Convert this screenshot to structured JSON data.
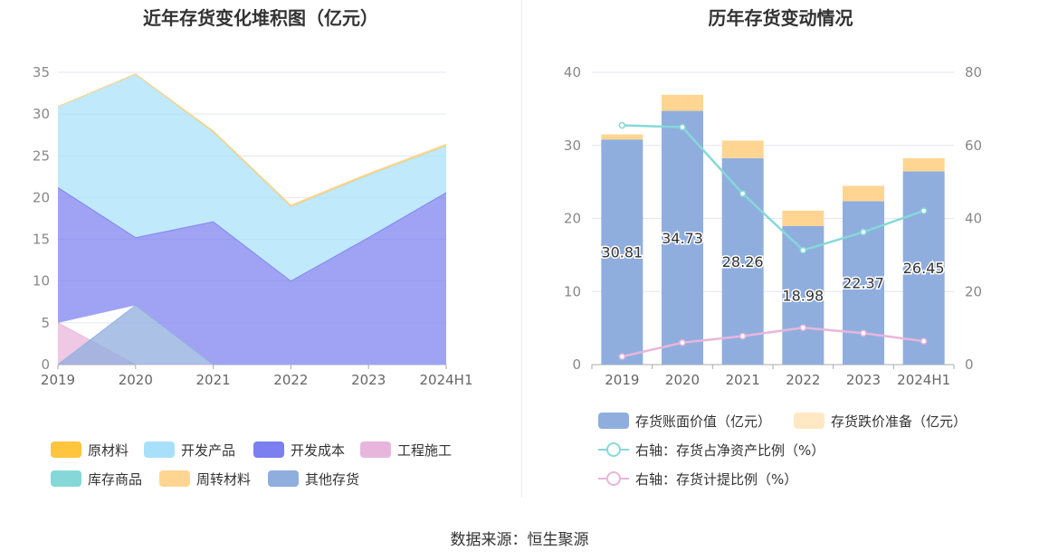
{
  "source": "数据来源：恒生聚源",
  "chart_data": [
    {
      "type": "area",
      "stacked": true,
      "title": "近年存货变化堆积图（亿元）",
      "categories": [
        "2019",
        "2020",
        "2021",
        "2022",
        "2023",
        "2024H1"
      ],
      "ylim": [
        0,
        35
      ],
      "yticks": [
        0,
        5,
        10,
        15,
        20,
        25,
        30,
        35
      ],
      "grid": true,
      "legend_position": "bottom",
      "series": [
        {
          "name": "原材料",
          "color": "#ffc53d",
          "values": [
            0,
            0,
            0,
            0.1,
            0.1,
            0.05
          ]
        },
        {
          "name": "开发产品",
          "color": "#a8e0fa",
          "values": [
            9.7,
            19.6,
            10.8,
            8.9,
            7.5,
            5.6
          ]
        },
        {
          "name": "开发成本",
          "color": "#7b7ff0",
          "values": [
            16.2,
            8.1,
            17.1,
            10.0,
            15.2,
            20.6
          ]
        },
        {
          "name": "工程施工",
          "color": "#e8b6dc",
          "values": [
            5.0,
            0,
            0,
            0,
            0,
            0
          ]
        },
        {
          "name": "库存商品",
          "color": "#86d8d8",
          "values": [
            0,
            0,
            0,
            0,
            0,
            0
          ]
        },
        {
          "name": "周转材料",
          "color": "#ffd591",
          "values": [
            0,
            0,
            0.1,
            0.2,
            0.2,
            0.2
          ]
        },
        {
          "name": "其他存货",
          "color": "#8faede",
          "values": [
            0,
            7.1,
            0,
            0,
            0,
            0
          ]
        }
      ]
    },
    {
      "type": "bar",
      "stacked": true,
      "title": "历年存货变动情况",
      "categories": [
        "2019",
        "2020",
        "2021",
        "2022",
        "2023",
        "2024H1"
      ],
      "ylim": [
        0,
        40
      ],
      "yticks": [
        0,
        10,
        20,
        30,
        40
      ],
      "y2lim": [
        0,
        80
      ],
      "y2ticks": [
        0,
        20,
        40,
        60,
        80
      ],
      "grid": true,
      "legend_position": "bottom",
      "series": [
        {
          "name": "存货账面价值（亿元）",
          "type": "bar",
          "axis": "left",
          "color": "#8faede",
          "values": [
            30.81,
            34.73,
            28.26,
            18.98,
            22.37,
            26.45
          ],
          "labels": [
            "30.81",
            "34.73",
            "28.26",
            "18.98",
            "22.37",
            "26.45"
          ]
        },
        {
          "name": "存货跌价准备（亿元）",
          "type": "bar",
          "axis": "left",
          "color": "#ffd591",
          "values": [
            0.7,
            2.2,
            2.4,
            2.1,
            2.1,
            1.8
          ]
        },
        {
          "name": "右轴：存货占净资产比例（%）",
          "type": "line",
          "axis": "right",
          "color": "#86d8d8",
          "values": [
            65.5,
            65.0,
            46.8,
            31.3,
            36.3,
            42.1
          ]
        },
        {
          "name": "右轴：存货计提比例（%）",
          "type": "line",
          "axis": "right",
          "color": "#e8b6dc",
          "values": [
            2.2,
            6.0,
            7.8,
            10.1,
            8.6,
            6.4
          ]
        }
      ]
    }
  ]
}
